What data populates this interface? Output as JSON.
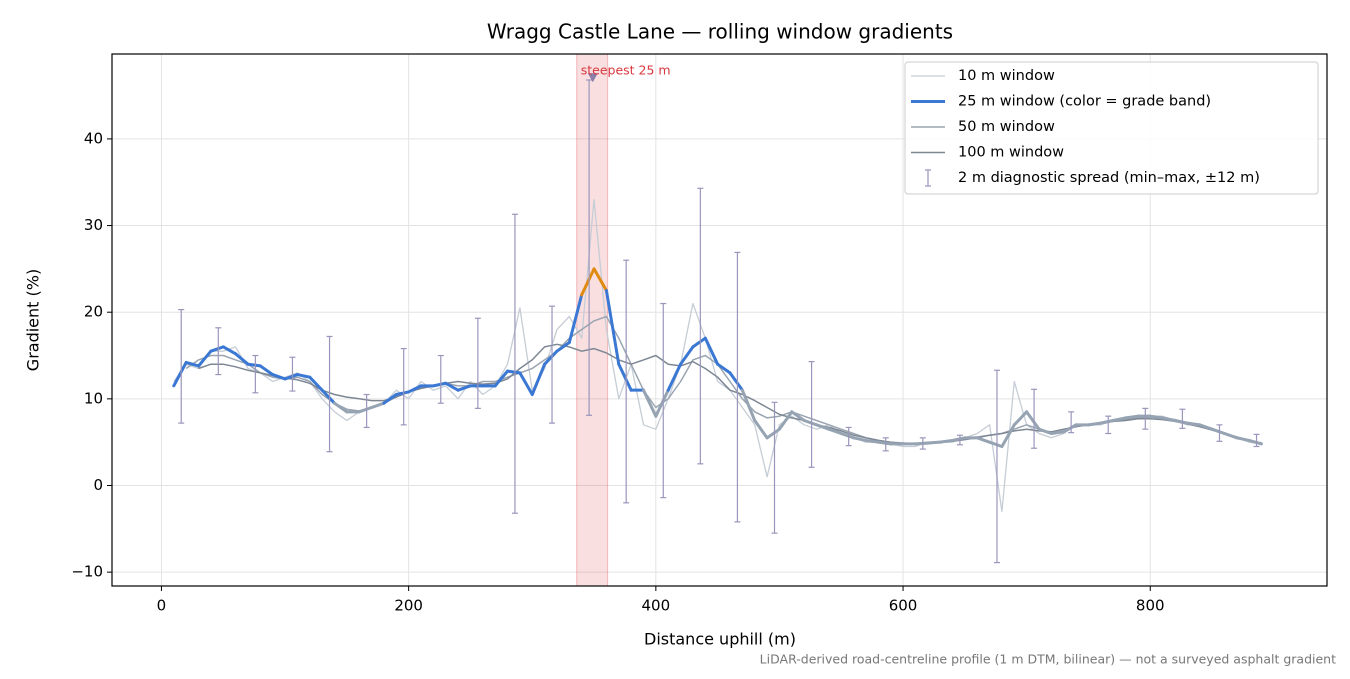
{
  "chart_data": {
    "type": "line",
    "title": "Wragg Castle Lane — rolling window gradients",
    "xlabel": "Distance uphill (m)",
    "ylabel": "Gradient (%)",
    "footnote": "LiDAR-derived road-centreline profile (1 m DTM, bilinear) — not a surveyed asphalt gradient",
    "xlim": [
      -40,
      943
    ],
    "ylim": [
      -11.6,
      49.8
    ],
    "xticks": [
      0,
      200,
      400,
      600,
      800
    ],
    "yticks": [
      {
        "value": -10,
        "label": "−10"
      },
      0,
      10,
      20,
      30,
      40
    ],
    "grid": true,
    "legend": "upper right",
    "x": [
      10,
      20,
      30,
      40,
      50,
      60,
      70,
      80,
      90,
      100,
      110,
      120,
      130,
      140,
      150,
      160,
      170,
      180,
      190,
      200,
      210,
      220,
      230,
      240,
      250,
      260,
      270,
      280,
      290,
      300,
      310,
      320,
      330,
      340,
      350,
      360,
      370,
      380,
      390,
      400,
      410,
      420,
      430,
      440,
      450,
      460,
      470,
      480,
      490,
      500,
      510,
      520,
      530,
      540,
      550,
      560,
      570,
      580,
      590,
      600,
      610,
      620,
      630,
      640,
      650,
      660,
      670,
      680,
      690,
      700,
      710,
      720,
      730,
      740,
      750,
      760,
      770,
      780,
      790,
      800,
      810,
      820,
      830,
      840,
      850,
      860,
      870,
      880,
      890
    ],
    "series": [
      {
        "name": "10 m window",
        "color": "#c5cdd6",
        "width": 1.3,
        "values": [
          12.0,
          14.0,
          13.5,
          15.5,
          15.5,
          16.0,
          13.5,
          13.0,
          12.0,
          12.5,
          13.0,
          12.0,
          10.0,
          8.5,
          7.5,
          8.5,
          9.0,
          9.5,
          11.0,
          10.0,
          12.0,
          11.0,
          11.5,
          10.0,
          12.0,
          10.5,
          11.5,
          14.0,
          20.5,
          11.0,
          13.5,
          18.0,
          19.5,
          17.0,
          33.0,
          18.0,
          10.0,
          14.0,
          7.0,
          6.5,
          10.0,
          14.0,
          21.0,
          17.0,
          12.0,
          11.0,
          9.0,
          7.0,
          1.0,
          7.0,
          8.0,
          7.0,
          6.5,
          7.0,
          6.0,
          5.5,
          5.0,
          5.0,
          4.8,
          4.5,
          4.5,
          5.0,
          5.0,
          5.0,
          5.5,
          6.0,
          7.0,
          -3.0,
          12.0,
          7.0,
          6.0,
          5.5,
          6.0,
          7.0,
          7.0,
          7.0,
          7.5,
          7.8,
          8.0,
          8.0,
          8.0,
          7.5,
          7.0,
          7.0,
          6.5,
          6.0,
          5.5,
          5.0,
          4.8
        ]
      },
      {
        "name": "25 m window (color = grade band)",
        "color": "#3a78d4",
        "width": 3,
        "band_thresholds": [
          10,
          20,
          25
        ],
        "band_colors": [
          "#95a3b3",
          "#3a78d4",
          "#e08a10",
          "#c0392b"
        ],
        "values": [
          11.5,
          14.2,
          13.8,
          15.5,
          16.0,
          15.2,
          14.0,
          13.8,
          12.8,
          12.3,
          12.8,
          12.5,
          11.0,
          9.5,
          8.5,
          8.5,
          9.0,
          9.5,
          10.5,
          10.8,
          11.5,
          11.5,
          11.8,
          11.0,
          11.5,
          11.5,
          11.5,
          13.2,
          13.0,
          10.5,
          14.0,
          15.5,
          16.5,
          22.0,
          25.0,
          22.5,
          14.0,
          11.0,
          11.0,
          8.0,
          11.0,
          14.0,
          16.0,
          17.0,
          14.0,
          13.0,
          11.0,
          7.5,
          5.5,
          6.5,
          8.5,
          7.5,
          7.0,
          6.5,
          6.0,
          5.5,
          5.2,
          5.0,
          4.8,
          4.8,
          4.8,
          4.9,
          5.0,
          5.2,
          5.5,
          5.5,
          5.0,
          4.5,
          7.0,
          8.5,
          6.5,
          6.0,
          6.2,
          7.0,
          7.0,
          7.2,
          7.5,
          7.8,
          8.0,
          8.0,
          7.8,
          7.5,
          7.2,
          7.0,
          6.5,
          6.0,
          5.5,
          5.2,
          4.8
        ]
      },
      {
        "name": "50 m window",
        "color": "#9aa5b1",
        "width": 1.5,
        "values": [
          null,
          13.5,
          14.5,
          15.0,
          15.0,
          14.5,
          14.0,
          13.0,
          12.5,
          12.3,
          12.5,
          12.0,
          10.5,
          9.5,
          8.8,
          8.6,
          9.0,
          9.5,
          10.2,
          10.8,
          11.2,
          11.5,
          11.8,
          11.5,
          11.5,
          12.0,
          12.0,
          12.5,
          13.0,
          13.5,
          14.5,
          15.5,
          17.0,
          18.0,
          19.0,
          19.5,
          17.0,
          14.0,
          11.0,
          9.0,
          10.0,
          12.0,
          14.5,
          15.0,
          14.0,
          12.0,
          10.0,
          8.5,
          7.8,
          8.0,
          8.5,
          8.0,
          7.5,
          7.0,
          6.5,
          6.0,
          5.5,
          5.2,
          5.0,
          4.8,
          4.8,
          4.9,
          5.0,
          5.2,
          5.5,
          5.6,
          5.8,
          6.0,
          6.5,
          7.0,
          6.5,
          6.0,
          6.3,
          6.8,
          7.0,
          7.2,
          7.4,
          7.6,
          7.8,
          7.9,
          7.8,
          7.6,
          7.2,
          6.8,
          6.4,
          6.0,
          5.6,
          5.2,
          4.9
        ]
      },
      {
        "name": "100 m window",
        "color": "#7d8794",
        "width": 1.5,
        "values": [
          null,
          null,
          13.5,
          14.0,
          14.0,
          13.7,
          13.3,
          13.0,
          12.7,
          12.4,
          12.2,
          11.8,
          11.0,
          10.5,
          10.2,
          10.0,
          9.8,
          9.8,
          10.2,
          10.8,
          11.2,
          11.5,
          11.8,
          12.0,
          11.8,
          11.7,
          11.8,
          12.3,
          13.5,
          14.5,
          16.0,
          16.3,
          16.0,
          15.5,
          15.8,
          15.3,
          14.5,
          14.0,
          14.5,
          15.0,
          14.0,
          13.8,
          14.3,
          13.5,
          12.5,
          11.0,
          10.5,
          9.8,
          9.0,
          8.2,
          7.8,
          7.5,
          7.0,
          6.7,
          6.3,
          5.8,
          5.5,
          5.2,
          5.0,
          4.9,
          4.8,
          4.8,
          5.0,
          5.1,
          5.3,
          5.5,
          5.8,
          6.0,
          6.3,
          6.5,
          6.3,
          6.2,
          6.5,
          6.8,
          7.0,
          7.2,
          7.4,
          7.5,
          7.7,
          7.7,
          7.6,
          7.4,
          7.1,
          6.8,
          6.4,
          6.0,
          5.6,
          5.2,
          4.9
        ]
      }
    ],
    "errorbars": {
      "name": "2 m diagnostic spread (min–max, ±12 m)",
      "color": "#9a96bb",
      "x": [
        16,
        46,
        76,
        106,
        136,
        166,
        196,
        226,
        256,
        286,
        316,
        346,
        376,
        406,
        436,
        466,
        496,
        526,
        556,
        586,
        616,
        646,
        676,
        706,
        736,
        766,
        796,
        826,
        856,
        886
      ],
      "low": [
        7.2,
        12.8,
        10.7,
        10.9,
        3.9,
        6.7,
        7.0,
        9.5,
        8.9,
        -3.2,
        7.2,
        8.1,
        -2.0,
        -1.4,
        2.5,
        -4.2,
        -5.5,
        2.1,
        4.6,
        4.0,
        4.2,
        4.7,
        -8.9,
        4.3,
        6.1,
        6.0,
        6.5,
        6.6,
        5.1,
        4.5
      ],
      "high": [
        20.3,
        18.2,
        15.0,
        14.8,
        17.2,
        10.5,
        15.8,
        15.0,
        19.3,
        31.3,
        20.7,
        46.8,
        26.0,
        21.0,
        34.3,
        26.9,
        9.6,
        14.3,
        6.7,
        5.5,
        5.5,
        5.8,
        13.3,
        11.1,
        8.5,
        8.0,
        8.9,
        8.8,
        7.0,
        5.9
      ]
    },
    "highlight": {
      "label": "steepest 25 m",
      "color": "#d9363e",
      "xlim": [
        336,
        361
      ],
      "marker": {
        "x": 349,
        "y": 47
      }
    }
  }
}
